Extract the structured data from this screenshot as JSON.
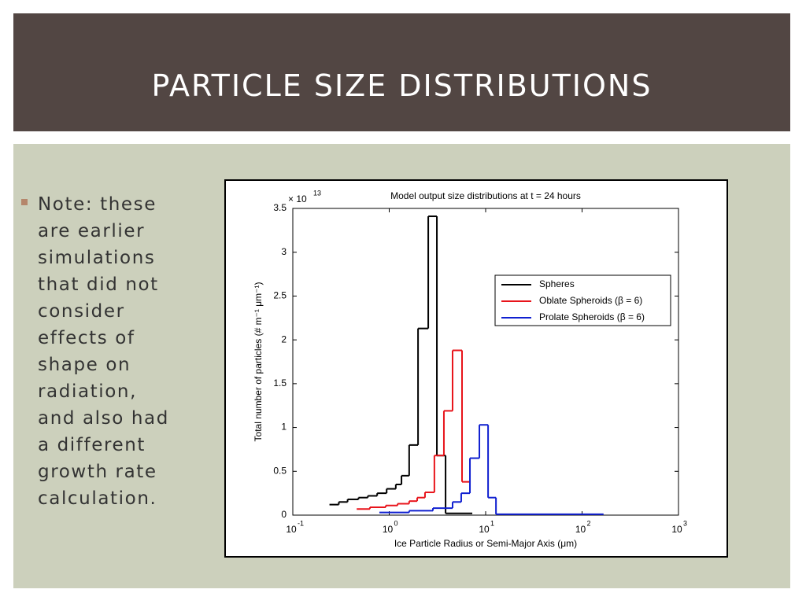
{
  "slide_title": "PARTICLE SIZE DISTRIBUTIONS",
  "bullet_lines": [
    "Note: these",
    "are earlier",
    "simulations",
    "that did not",
    "consider",
    "effects of",
    "shape on",
    "radiation,",
    "and also had",
    "a different",
    "growth rate",
    "calculation."
  ],
  "chart_data": {
    "type": "step",
    "title": "Model output size distributions at t = 24 hours",
    "x_label": "Ice Particle Radius or Semi-Major Axis (μm)",
    "y_label": "Total number of particles (# m⁻¹ μm⁻¹)",
    "y_scale_label": "× 10",
    "y_scale_exponent": "13",
    "log_x": true,
    "xlim": [
      0.1,
      1000
    ],
    "xticks": [
      {
        "value": 0.1,
        "label": "10",
        "exponent": "-1"
      },
      {
        "value": 1,
        "label": "10",
        "exponent": "0"
      },
      {
        "value": 10,
        "label": "10",
        "exponent": "1"
      },
      {
        "value": 100,
        "label": "10",
        "exponent": "2"
      },
      {
        "value": 1000,
        "label": "10",
        "exponent": "3"
      }
    ],
    "ylim": [
      0,
      3.5
    ],
    "yticks": [
      0,
      0.5,
      1,
      1.5,
      2,
      2.5,
      3,
      3.5
    ],
    "legend_position": "upper right",
    "series": [
      {
        "name": "Spheres",
        "color": "#000000",
        "bins": [
          0.24,
          0.3,
          0.37,
          0.48,
          0.6,
          0.75,
          0.94,
          1.17,
          1.34,
          1.61,
          1.99,
          2.54,
          3.12,
          3.84,
          7.27
        ],
        "values": [
          0.12,
          0.15,
          0.18,
          0.2,
          0.22,
          0.25,
          0.3,
          0.35,
          0.45,
          0.8,
          2.13,
          3.41,
          0.68,
          0.02
        ]
      },
      {
        "name": "Oblate Spheroids (β = 6)",
        "color": "#e8141b",
        "bins": [
          0.46,
          0.63,
          0.92,
          1.22,
          1.61,
          1.95,
          2.35,
          2.94,
          3.69,
          4.54,
          5.69,
          7.0
        ],
        "values": [
          0.07,
          0.09,
          0.11,
          0.13,
          0.16,
          0.2,
          0.26,
          0.68,
          1.19,
          1.88,
          0.38
        ]
      },
      {
        "name": "Prolate Spheroids (β = 6)",
        "color": "#1020d0",
        "bins": [
          0.79,
          1.61,
          2.84,
          4.54,
          5.58,
          6.87,
          8.61,
          10.6,
          12.8,
          167
        ],
        "values": [
          0.03,
          0.05,
          0.08,
          0.15,
          0.25,
          0.65,
          1.03,
          0.2,
          0.01
        ]
      }
    ]
  }
}
